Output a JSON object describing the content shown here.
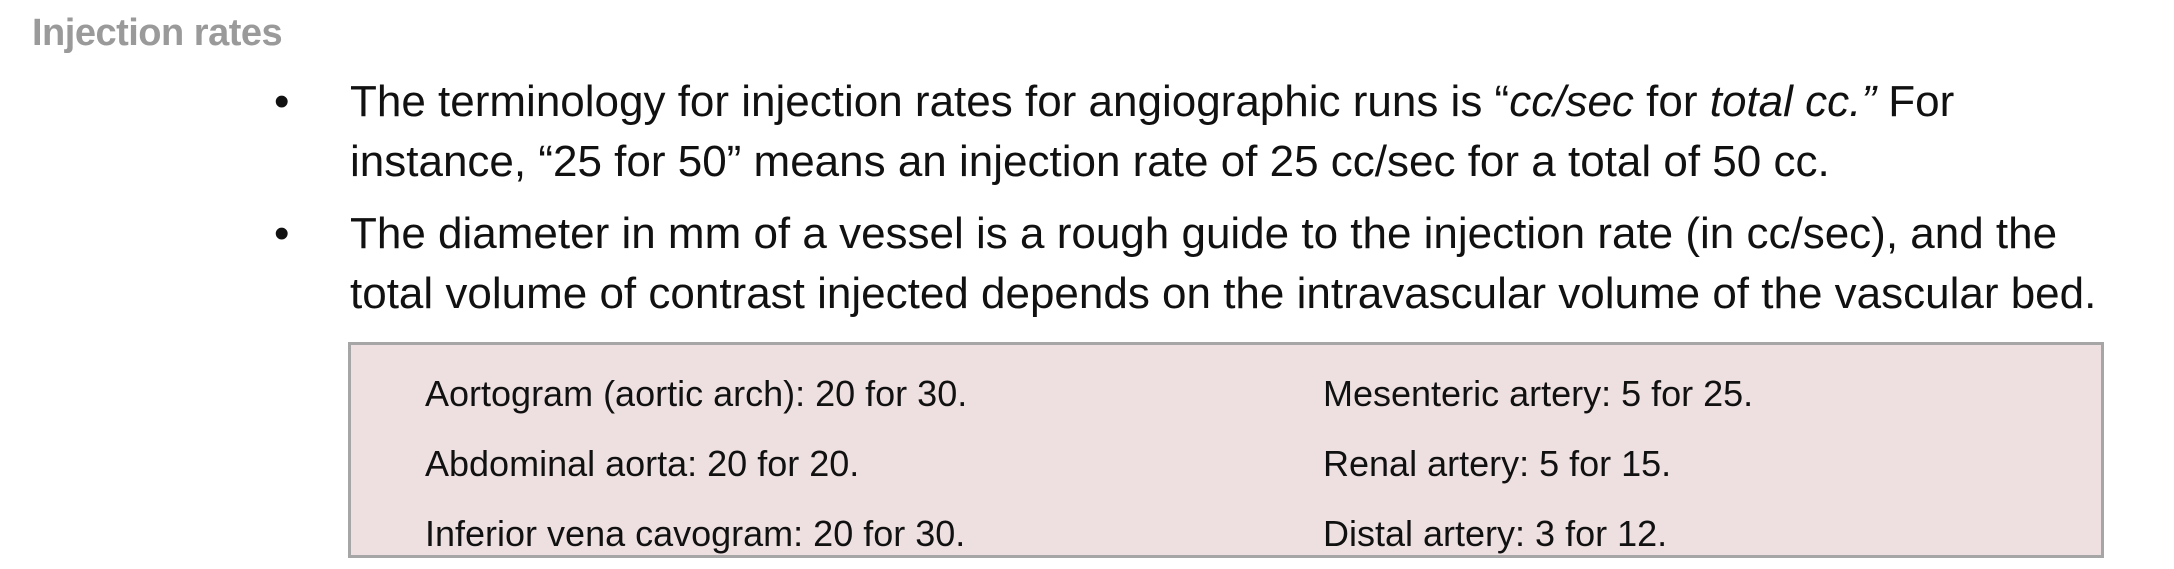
{
  "section": {
    "title": "Injection rates"
  },
  "bullets": [
    {
      "marker": "•",
      "part1": "The terminology for injection rates for angiographic runs is “",
      "part2_italic": "cc/sec",
      "part3": " for ",
      "part4_italic": "total cc.”",
      "part5": " For instance, “25 for 50” means an injection rate of 25 cc/sec for a total of 50 cc."
    },
    {
      "marker": "•",
      "text": "The diameter in mm of a vessel is a rough guide to the injection rate (in cc/sec), and the total volume of contrast injected depends on the intravascular volume of the vascular bed."
    }
  ],
  "rates": {
    "left": [
      "Aortogram (aortic arch): 20 for 30.",
      "Abdominal aorta: 20 for 20.",
      "Inferior vena cavogram: 20 for 30."
    ],
    "right": [
      "Mesenteric artery: 5 for 25.",
      "Renal artery: 5 for 15.",
      "Distal artery: 3 for 12."
    ]
  },
  "colors": {
    "title": "#9a9a9a",
    "box_background": "#eee0e1",
    "box_border": "#a6a6a6"
  }
}
